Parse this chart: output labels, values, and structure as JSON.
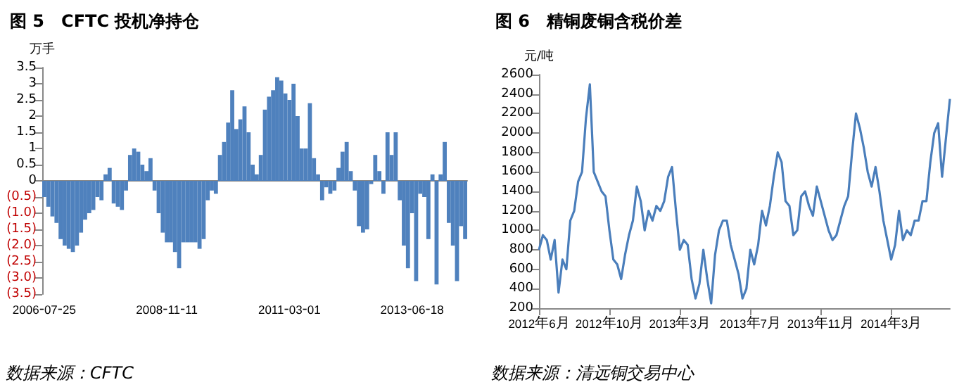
{
  "chart_data": [
    {
      "type": "bar",
      "title": "图 5　CFTC 投机净持仓",
      "ylabel": "万手",
      "annotations": [
        "数据来源：CFTC"
      ],
      "categories": [
        "2006-07-25",
        null,
        null,
        null,
        null,
        null,
        null,
        null,
        null,
        null,
        null,
        null,
        null,
        null,
        null,
        null,
        null,
        null,
        null,
        null,
        null,
        null,
        null,
        null,
        null,
        null,
        null,
        null,
        null,
        null,
        "2008-11-11",
        null,
        null,
        null,
        null,
        null,
        null,
        null,
        null,
        null,
        null,
        null,
        null,
        null,
        null,
        null,
        null,
        null,
        null,
        null,
        null,
        null,
        null,
        null,
        null,
        null,
        null,
        null,
        null,
        null,
        "2011-03-01",
        null,
        null,
        null,
        null,
        null,
        null,
        null,
        null,
        null,
        null,
        null,
        null,
        null,
        null,
        null,
        null,
        null,
        null,
        null,
        null,
        null,
        null,
        null,
        null,
        null,
        null,
        null,
        null,
        null,
        "2013-06-18",
        null,
        null,
        null,
        null,
        null,
        null,
        null,
        null,
        null,
        null,
        null,
        null,
        null
      ],
      "series": [
        {
          "color": "#4f81bd",
          "values": [
            -0.5,
            -0.8,
            -1.1,
            -1.3,
            -1.8,
            -2.0,
            -2.1,
            -2.2,
            -2.0,
            -1.6,
            -1.2,
            -1.0,
            -0.9,
            -0.5,
            -0.6,
            0.2,
            0.4,
            -0.7,
            -0.8,
            -0.9,
            -0.3,
            0.8,
            1.0,
            0.9,
            0.5,
            0.3,
            0.7,
            -0.3,
            -1.0,
            -1.6,
            -1.9,
            -1.9,
            -2.2,
            -2.7,
            -1.9,
            -1.9,
            -1.9,
            -1.9,
            -2.1,
            -1.8,
            -0.6,
            -0.3,
            -0.4,
            0.8,
            1.2,
            1.8,
            2.8,
            1.6,
            1.9,
            2.3,
            1.5,
            0.5,
            0.2,
            0.8,
            2.2,
            2.6,
            2.8,
            3.2,
            3.1,
            2.7,
            2.5,
            3.0,
            2.0,
            1.0,
            1.0,
            2.4,
            0.7,
            0.2,
            -0.6,
            -0.2,
            -0.4,
            -0.3,
            0.4,
            0.9,
            1.2,
            0.3,
            -0.3,
            -1.4,
            -1.6,
            -1.5,
            -0.1,
            0.8,
            0.3,
            -0.4,
            1.5,
            0.8,
            1.5,
            -0.6,
            -2.0,
            -2.7,
            -1.0,
            -3.1,
            -0.4,
            -0.5,
            -1.8,
            0.2,
            -3.2,
            0.2,
            1.2,
            -1.3,
            -2.0,
            -3.1,
            -1.4,
            -1.8
          ]
        }
      ],
      "ylim": [
        -3.5,
        3.5
      ],
      "yticks": [
        3.5,
        3.0,
        2.5,
        2.0,
        1.5,
        1.0,
        0.5,
        0.0,
        {
          "value": -0.5,
          "label": "(0.5)"
        },
        {
          "value": -1.0,
          "label": "(1.0)"
        },
        {
          "value": -1.5,
          "label": "(1.5)"
        },
        {
          "value": -2.0,
          "label": "(2.0)"
        },
        {
          "value": -2.5,
          "label": "(2.5)"
        },
        {
          "value": -3.0,
          "label": "(3.0)"
        },
        {
          "value": -3.5,
          "label": "(3.5)"
        }
      ],
      "tick_labels": true
    },
    {
      "type": "line",
      "title": "图 6　精铜废铜含税价差",
      "ylabel": "元/吨",
      "annotations": [
        "数据来源：清远铜交易中心"
      ],
      "categories": [
        "2012年6月",
        null,
        null,
        null,
        null,
        null,
        null,
        null,
        null,
        null,
        null,
        null,
        null,
        null,
        null,
        null,
        null,
        null,
        "2012年10月",
        null,
        null,
        null,
        null,
        null,
        null,
        null,
        null,
        null,
        null,
        null,
        null,
        null,
        null,
        null,
        null,
        null,
        "2013年3月",
        null,
        null,
        null,
        null,
        null,
        null,
        null,
        null,
        null,
        null,
        null,
        null,
        null,
        null,
        null,
        null,
        null,
        "2013年7月",
        null,
        null,
        null,
        null,
        null,
        null,
        null,
        null,
        null,
        null,
        null,
        null,
        null,
        null,
        null,
        null,
        null,
        "2013年11月",
        null,
        null,
        null,
        null,
        null,
        null,
        null,
        null,
        null,
        null,
        null,
        null,
        null,
        null,
        null,
        null,
        null,
        "2014年3月",
        null,
        null,
        null,
        null,
        null,
        null,
        null,
        null,
        null,
        null,
        null,
        null,
        null,
        null,
        null
      ],
      "series": [
        {
          "color": "#4a7ebb",
          "values": [
            800,
            950,
            900,
            700,
            900,
            360,
            700,
            600,
            1100,
            1200,
            1500,
            1600,
            2150,
            2500,
            1600,
            1500,
            1400,
            1350,
            1000,
            700,
            650,
            500,
            750,
            950,
            1100,
            1450,
            1300,
            1000,
            1200,
            1100,
            1250,
            1200,
            1300,
            1550,
            1650,
            1200,
            800,
            900,
            850,
            500,
            300,
            450,
            800,
            500,
            250,
            750,
            1000,
            1100,
            1100,
            850,
            700,
            550,
            300,
            400,
            800,
            650,
            850,
            1200,
            1050,
            1250,
            1550,
            1800,
            1700,
            1300,
            1250,
            950,
            1000,
            1350,
            1400,
            1250,
            1150,
            1450,
            1300,
            1150,
            1000,
            900,
            950,
            1100,
            1250,
            1350,
            1800,
            2200,
            2050,
            1850,
            1600,
            1450,
            1650,
            1400,
            1100,
            900,
            700,
            850,
            1200,
            900,
            1000,
            950,
            1100,
            1100,
            1300,
            1300,
            1700,
            2000,
            2100,
            1550,
            1950,
            2350
          ]
        }
      ],
      "ylim": [
        200,
        2600
      ],
      "yticks": [
        200,
        400,
        600,
        800,
        1000,
        1200,
        1400,
        1600,
        1800,
        2000,
        2200,
        2400,
        2600
      ],
      "marker": "none",
      "line_style": "solid"
    }
  ]
}
